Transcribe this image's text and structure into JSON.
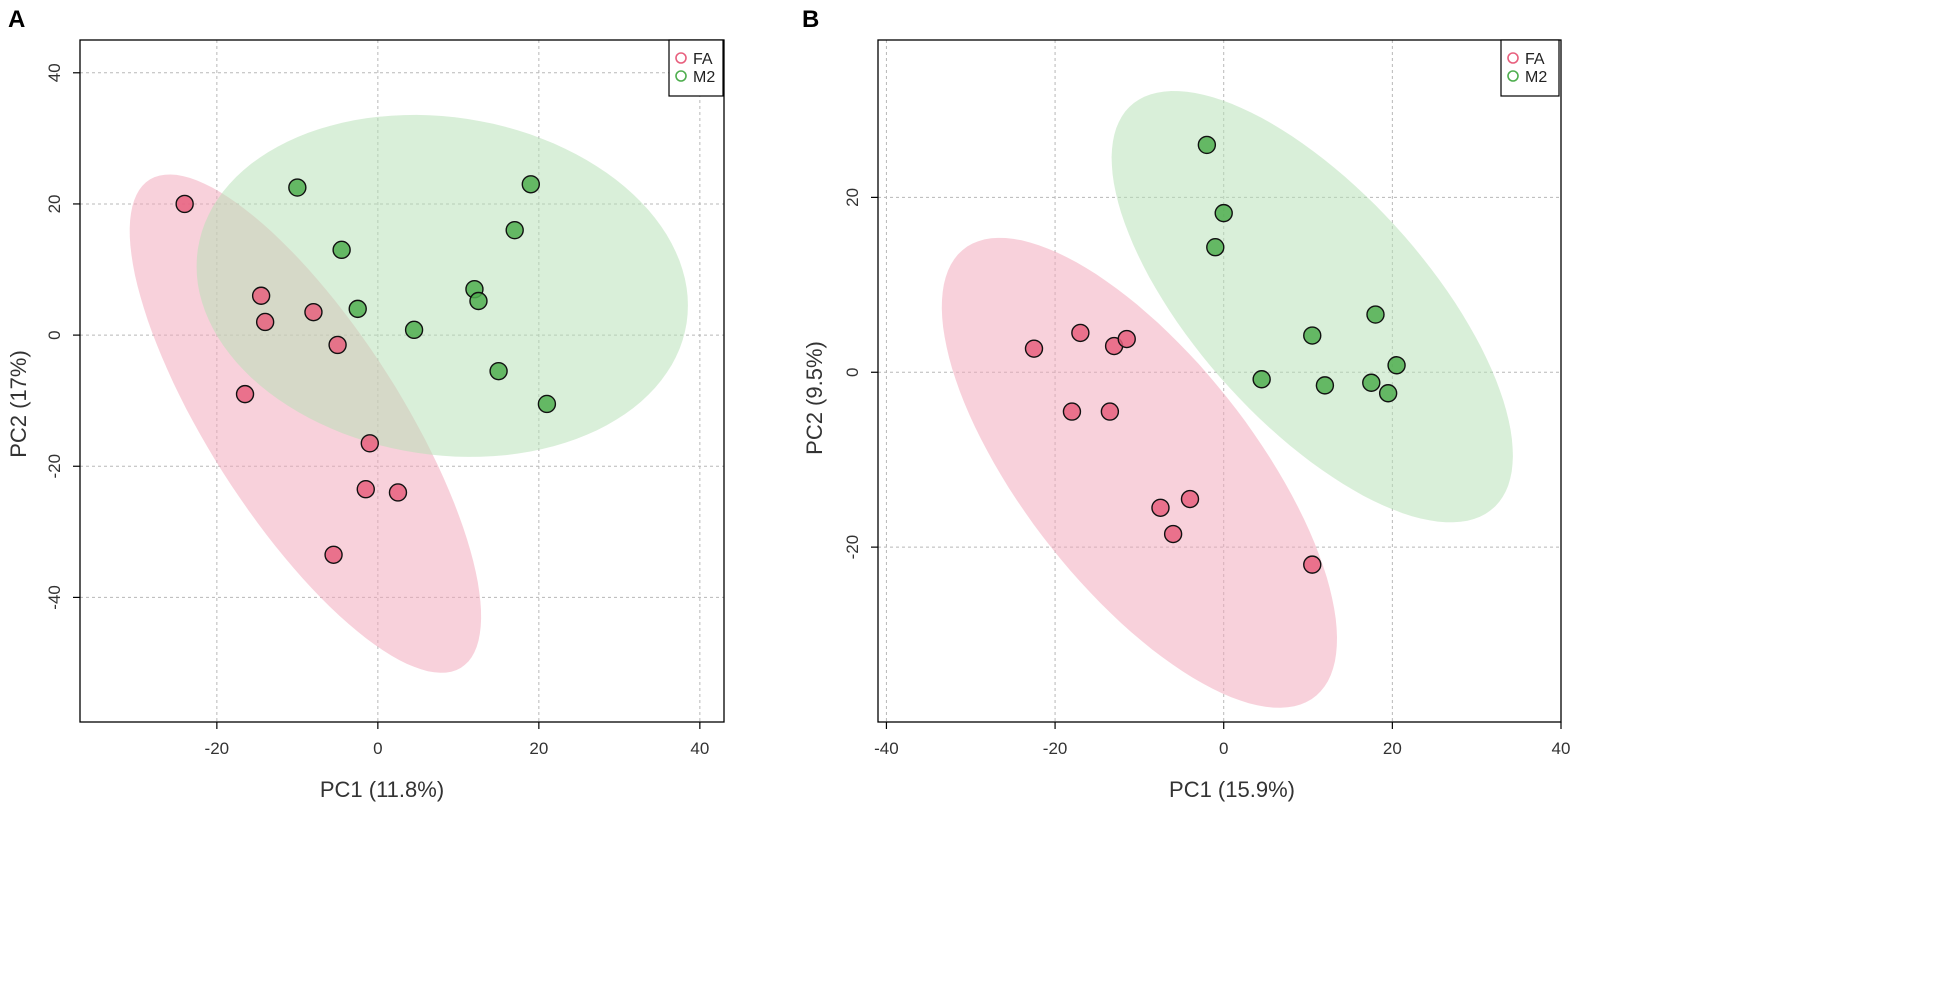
{
  "chart_data": [
    {
      "type": "scatter",
      "panel_label": "A",
      "xlabel": "PC1 (11.8%)",
      "ylabel": "PC2 (17%)",
      "xlim": [
        -37,
        43
      ],
      "ylim": [
        -59,
        45
      ],
      "xticks": [
        -20,
        0,
        20,
        40
      ],
      "yticks": [
        -40,
        -20,
        0,
        20,
        40
      ],
      "grid": true,
      "legend_position": "top-right",
      "series": [
        {
          "name": "FA",
          "color": "#e8607e",
          "fill": "#f2a6ba",
          "ellipse": {
            "cx": -9,
            "cy": -13.5,
            "rx": 42,
            "ry": 12.5,
            "angle": -63.5
          },
          "points": [
            {
              "x": -24,
              "y": 20
            },
            {
              "x": -14.5,
              "y": 6
            },
            {
              "x": -14,
              "y": 2
            },
            {
              "x": -8,
              "y": 3.5
            },
            {
              "x": -5,
              "y": -1.5
            },
            {
              "x": -16.5,
              "y": -9
            },
            {
              "x": -1,
              "y": -16.5
            },
            {
              "x": -1.5,
              "y": -23.5
            },
            {
              "x": 2.5,
              "y": -24
            },
            {
              "x": -5.5,
              "y": -33.5
            }
          ]
        },
        {
          "name": "M2",
          "color": "#4fae4f",
          "fill": "#b6e0b6",
          "ellipse": {
            "cx": 8,
            "cy": 7.5,
            "rx": 31,
            "ry": 25.5,
            "angle": -18
          },
          "points": [
            {
              "x": -10,
              "y": 22.5
            },
            {
              "x": -4.5,
              "y": 13
            },
            {
              "x": -2.5,
              "y": 4
            },
            {
              "x": 4.5,
              "y": 0.8
            },
            {
              "x": 12,
              "y": 7
            },
            {
              "x": 12.5,
              "y": 5.2
            },
            {
              "x": 17,
              "y": 16
            },
            {
              "x": 19,
              "y": 23
            },
            {
              "x": 15,
              "y": -5.5
            },
            {
              "x": 21,
              "y": -10.5
            }
          ]
        }
      ]
    },
    {
      "type": "scatter",
      "panel_label": "B",
      "xlabel": "PC1 (15.9%)",
      "ylabel": "PC2 (9.5%)",
      "xlim": [
        -41,
        40
      ],
      "ylim": [
        -40,
        38
      ],
      "xticks": [
        -40,
        -20,
        0,
        20,
        40
      ],
      "yticks": [
        -20,
        0,
        20
      ],
      "grid": true,
      "legend_position": "top-right",
      "series": [
        {
          "name": "FA",
          "color": "#e8607e",
          "fill": "#f2a6ba",
          "ellipse": {
            "cx": -10,
            "cy": -11.5,
            "rx": 33,
            "ry": 13.5,
            "angle": -50.5
          },
          "points": [
            {
              "x": -22.5,
              "y": 2.7
            },
            {
              "x": -17,
              "y": 4.5
            },
            {
              "x": -13,
              "y": 3
            },
            {
              "x": -11.5,
              "y": 3.8
            },
            {
              "x": -18,
              "y": -4.5
            },
            {
              "x": -13.5,
              "y": -4.5
            },
            {
              "x": -7.5,
              "y": -15.5
            },
            {
              "x": -4,
              "y": -14.5
            },
            {
              "x": -6,
              "y": -18.5
            },
            {
              "x": 10.5,
              "y": -22
            }
          ]
        },
        {
          "name": "M2",
          "color": "#4fae4f",
          "fill": "#b6e0b6",
          "ellipse": {
            "cx": 10.5,
            "cy": 7.5,
            "rx": 31.5,
            "ry": 13.5,
            "angle": -46.5
          },
          "points": [
            {
              "x": -2,
              "y": 26
            },
            {
              "x": 0,
              "y": 18.2
            },
            {
              "x": -1,
              "y": 14.3
            },
            {
              "x": 10.5,
              "y": 4.2
            },
            {
              "x": 18,
              "y": 6.6
            },
            {
              "x": 4.5,
              "y": -0.8
            },
            {
              "x": 12,
              "y": -1.5
            },
            {
              "x": 17.5,
              "y": -1.2
            },
            {
              "x": 20.5,
              "y": 0.8
            },
            {
              "x": 19.5,
              "y": -2.4
            }
          ]
        }
      ]
    }
  ]
}
